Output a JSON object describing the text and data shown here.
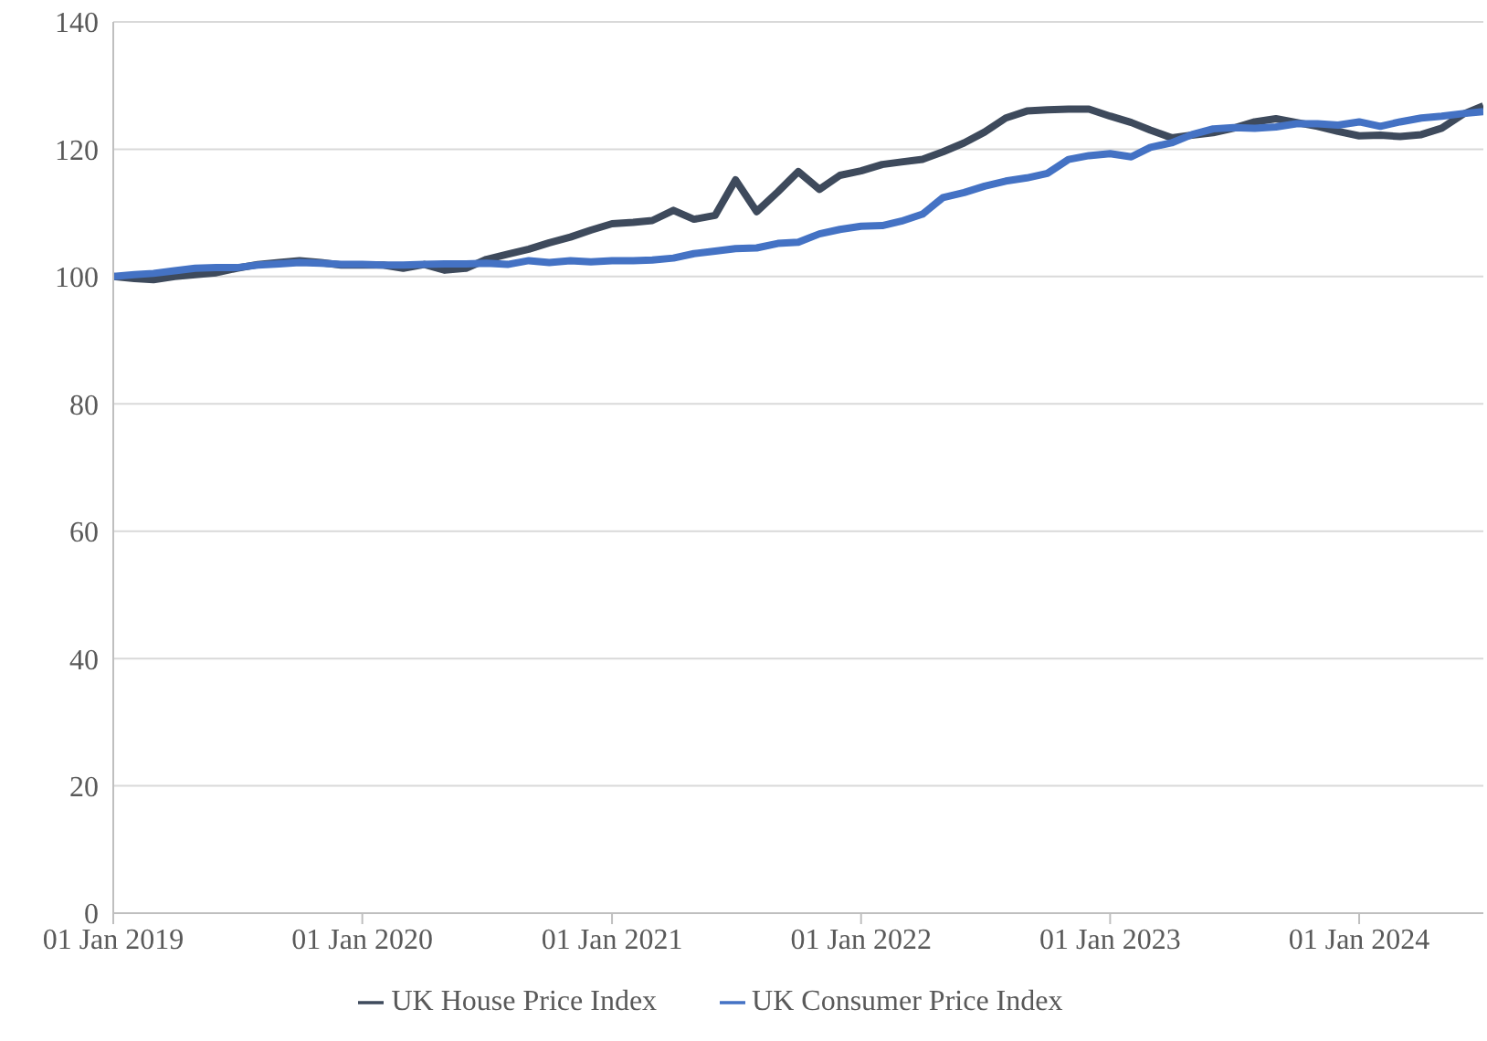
{
  "chart_data": {
    "type": "line",
    "x": [
      "2019-01",
      "2019-02",
      "2019-03",
      "2019-04",
      "2019-05",
      "2019-06",
      "2019-07",
      "2019-08",
      "2019-09",
      "2019-10",
      "2019-11",
      "2019-12",
      "2020-01",
      "2020-02",
      "2020-03",
      "2020-04",
      "2020-05",
      "2020-06",
      "2020-07",
      "2020-08",
      "2020-09",
      "2020-10",
      "2020-11",
      "2020-12",
      "2021-01",
      "2021-02",
      "2021-03",
      "2021-04",
      "2021-05",
      "2021-06",
      "2021-07",
      "2021-08",
      "2021-09",
      "2021-10",
      "2021-11",
      "2021-12",
      "2022-01",
      "2022-02",
      "2022-03",
      "2022-04",
      "2022-05",
      "2022-06",
      "2022-07",
      "2022-08",
      "2022-09",
      "2022-10",
      "2022-11",
      "2022-12",
      "2023-01",
      "2023-02",
      "2023-03",
      "2023-04",
      "2023-05",
      "2023-06",
      "2023-07",
      "2023-08",
      "2023-09",
      "2023-10",
      "2023-11",
      "2023-12",
      "2024-01",
      "2024-02",
      "2024-03",
      "2024-04",
      "2024-05",
      "2024-06",
      "2024-07"
    ],
    "series": [
      {
        "name": "UK House Price Index",
        "color": "#3e4a5c",
        "values": [
          100,
          99.7,
          99.5,
          100,
          100.3,
          100.6,
          101.3,
          101.9,
          102.2,
          102.5,
          102.2,
          101.8,
          101.8,
          101.8,
          101.3,
          101.9,
          101,
          101.3,
          102.7,
          103.5,
          104.3,
          105.3,
          106.2,
          107.3,
          108.3,
          108.5,
          108.8,
          110.4,
          109,
          109.6,
          115.2,
          110.2,
          113.3,
          116.5,
          113.7,
          115.9,
          116.6,
          117.6,
          118,
          118.4,
          119.6,
          121,
          122.7,
          124.9,
          126,
          126.2,
          126.3,
          126.3,
          125.2,
          124.2,
          123,
          121.8,
          122.2,
          122.6,
          123.3,
          124.3,
          124.8,
          124.2,
          123.6,
          122.8,
          122.1,
          122.2,
          122,
          122.3,
          123.3,
          125.5,
          126.8
        ]
      },
      {
        "name": "UK Consumer Price Index",
        "color": "#4472c4",
        "values": [
          100,
          100.3,
          100.5,
          100.9,
          101.3,
          101.4,
          101.4,
          101.8,
          102,
          102.2,
          102.1,
          101.9,
          101.9,
          101.8,
          101.8,
          101.9,
          102,
          102,
          102.1,
          101.9,
          102.5,
          102.2,
          102.5,
          102.3,
          102.5,
          102.5,
          102.6,
          102.9,
          103.6,
          104,
          104.4,
          104.5,
          105.2,
          105.4,
          106.7,
          107.4,
          107.9,
          108,
          108.7,
          109.8,
          112.4,
          113.2,
          114.2,
          115,
          115.5,
          116.2,
          118.4,
          119,
          119.3,
          118.8,
          120.3,
          121,
          122.3,
          123.2,
          123.4,
          123.3,
          123.5,
          124,
          124,
          123.8,
          124.3,
          123.6,
          124.3,
          124.9,
          125.2,
          125.6,
          125.9
        ]
      }
    ],
    "xlim": [
      "2019-01",
      "2024-07"
    ],
    "xticks": [
      {
        "value": "2019-01-01",
        "label": "01 Jan 2019"
      },
      {
        "value": "2020-01-01",
        "label": "01 Jan 2020"
      },
      {
        "value": "2021-01-01",
        "label": "01 Jan 2021"
      },
      {
        "value": "2022-01-01",
        "label": "01 Jan 2022"
      },
      {
        "value": "2023-01-01",
        "label": "01 Jan 2023"
      },
      {
        "value": "2024-01-01",
        "label": "01 Jan 2024"
      }
    ],
    "ylim": [
      0,
      140
    ],
    "yticks": [
      0,
      20,
      40,
      60,
      80,
      100,
      120,
      140
    ],
    "grid": "y",
    "legend": "bottom",
    "marker": "none",
    "line_style": "solid"
  }
}
